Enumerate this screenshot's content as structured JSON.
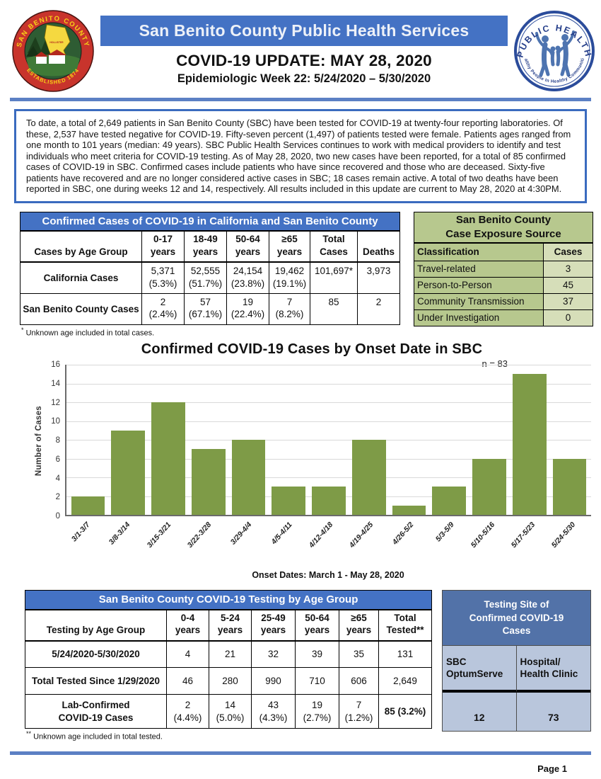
{
  "header": {
    "banner_title": "San Benito County Public Health Services",
    "title": "COVID-19 UPDATE: MAY 28, 2020",
    "subtitle": "Epidemiologic Week 22: 5/24/2020 – 5/30/2020",
    "seal": {
      "arc_top": "SAN BENITO COUNTY",
      "arc_bottom": "ESTABLISHED 1874",
      "city": "HOLLISTER"
    },
    "logo": {
      "arc_top": "PUBLIC HEALTH",
      "arc_bottom": "Healthy People In Healthy Communities"
    }
  },
  "intro": {
    "text": "To date, a total of 2,649 patients in San Benito County (SBC) have been tested for COVID-19 at twenty-four reporting laboratories.  Of these, 2,537 have tested negative for COVID-19.  Fifty-seven percent (1,497) of patients tested were female. Patients ages ranged from one month to 101 years (median: 49 years).  SBC Public Health Services continues to work with medical providers to identify and test individuals who meet criteria for COVID-19 testing.  As of May 28, 2020, two new cases have been reported, for a total of 85 confirmed cases of COVID-19 in SBC.  Confirmed cases include patients who have since recovered and those who are deceased.  Sixty-five patients have recovered and are no longer considered active cases in SBC; 18 cases remain active.  A total of two deaths have been reported in SBC, one during weeks 12 and 14, respectively. All results included in this update are current to May 28, 2020 at 4:30PM."
  },
  "cases_table": {
    "title": "Confirmed Cases of COVID-19 in California and San Benito County",
    "row_header_label": "Cases by Age Group",
    "columns": [
      {
        "l1": "0-17",
        "l2": "years"
      },
      {
        "l1": "18-49",
        "l2": "years"
      },
      {
        "l1": "50-64",
        "l2": "years"
      },
      {
        "l1": "≥65",
        "l2": "years"
      },
      {
        "l1": "Total",
        "l2": "Cases"
      },
      {
        "l1": "",
        "l2": "Deaths"
      }
    ],
    "rows": [
      {
        "label": "California Cases",
        "values": [
          {
            "n": "5,371",
            "p": "(5.3%)"
          },
          {
            "n": "52,555",
            "p": "(51.7%)"
          },
          {
            "n": "24,154",
            "p": "(23.8%)"
          },
          {
            "n": "19,462",
            "p": "(19.1%)"
          },
          {
            "n": "101,697*",
            "p": ""
          },
          {
            "n": "3,973",
            "p": ""
          }
        ]
      },
      {
        "label": "San Benito County Cases",
        "values": [
          {
            "n": "2",
            "p": "(2.4%)"
          },
          {
            "n": "57",
            "p": "(67.1%)"
          },
          {
            "n": "19",
            "p": "(22.4%)"
          },
          {
            "n": "7",
            "p": "(8.2%)"
          },
          {
            "n": "85",
            "p": ""
          },
          {
            "n": "2",
            "p": ""
          }
        ]
      }
    ],
    "footnote_mark": "*",
    "footnote": "Unknown age included in total cases."
  },
  "exposure_table": {
    "title_line1": "San Benito County",
    "title_line2": "Case Exposure Source",
    "col_label": "Classification",
    "col_value": "Cases",
    "rows": [
      {
        "label": "Travel-related",
        "value": "3"
      },
      {
        "label": "Person-to-Person",
        "value": "45"
      },
      {
        "label": "Community Transmission",
        "value": "37"
      },
      {
        "label": "Under Investigation",
        "value": "0"
      }
    ]
  },
  "chart_data": {
    "type": "bar",
    "title": "Confirmed COVID-19 Cases by Onset Date in SBC",
    "n_label": "n = 83",
    "categories": [
      "3/1-3/7",
      "3/8-3/14",
      "3/15-3/21",
      "3/22-3/28",
      "3/29-4/4",
      "4/5-4/11",
      "4/12-4/18",
      "4/19-4/25",
      "4/26-5/2",
      "5/3-5/9",
      "5/10-5/16",
      "5/17-5/23",
      "5/24-5/30"
    ],
    "values": [
      2,
      9,
      12,
      7,
      8,
      3,
      3,
      8,
      1,
      3,
      6,
      15,
      6
    ],
    "xlabel": "Onset Dates: March 1 - May 28, 2020",
    "ylabel": "Number of Cases",
    "ylim": [
      0,
      16
    ],
    "ytick_step": 2,
    "grid": true,
    "legend": "none",
    "bar_color": "#7E9B47"
  },
  "testing_table": {
    "title": "San Benito County COVID-19 Testing by Age Group",
    "row_header_label": "Testing by Age Group",
    "columns": [
      {
        "l1": "0-4",
        "l2": "years"
      },
      {
        "l1": "5-24",
        "l2": "years"
      },
      {
        "l1": "25-49",
        "l2": "years"
      },
      {
        "l1": "50-64",
        "l2": "years"
      },
      {
        "l1": "≥65",
        "l2": "years"
      },
      {
        "l1": "Total",
        "l2": "Tested**"
      }
    ],
    "rows": [
      {
        "label_line1": "5/24/2020-5/30/2020",
        "label_line2": "",
        "values": [
          {
            "n": "4",
            "p": ""
          },
          {
            "n": "21",
            "p": ""
          },
          {
            "n": "32",
            "p": ""
          },
          {
            "n": "39",
            "p": ""
          },
          {
            "n": "35",
            "p": ""
          },
          {
            "n": "131",
            "p": ""
          }
        ]
      },
      {
        "label_line1": "Total Tested Since 1/29/2020",
        "label_line2": "",
        "values": [
          {
            "n": "46",
            "p": ""
          },
          {
            "n": "280",
            "p": ""
          },
          {
            "n": "990",
            "p": ""
          },
          {
            "n": "710",
            "p": ""
          },
          {
            "n": "606",
            "p": ""
          },
          {
            "n": "2,649",
            "p": ""
          }
        ]
      },
      {
        "label_line1": "Lab-Confirmed",
        "label_line2": "COVID-19 Cases",
        "values": [
          {
            "n": "2",
            "p": "(4.4%)"
          },
          {
            "n": "14",
            "p": "(5.0%)"
          },
          {
            "n": "43",
            "p": "(4.3%)"
          },
          {
            "n": "19",
            "p": "(2.7%)"
          },
          {
            "n": "7",
            "p": "(1.2%)"
          },
          {
            "n": "85 (3.2%)",
            "p": ""
          }
        ]
      }
    ],
    "footnote_mark": "**",
    "footnote": "Unknown age included in total tested."
  },
  "site_table": {
    "title": "Testing Site of Confirmed COVID-19 Cases",
    "columns": [
      {
        "label_line1": "SBC",
        "label_line2": "OptumServe",
        "value": "12"
      },
      {
        "label_line1": "Hospital/",
        "label_line2": "Health Clinic",
        "value": "73"
      }
    ]
  },
  "footer": {
    "page_label": "Page 1"
  },
  "colors": {
    "banner_blue": "#4472C4",
    "rule_blue": "#5C80C4",
    "green_dark": "#B7C88E",
    "green_light": "#D6DEB9",
    "site_header_blue": "#5272A8",
    "site_cell_blue": "#B9C6DC",
    "bar_green": "#7E9B47"
  }
}
